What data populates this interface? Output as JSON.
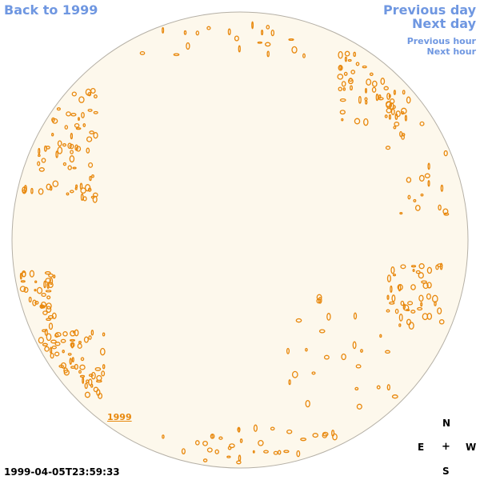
{
  "nav": {
    "back_label": "Back to 1999",
    "prev_day_label": "Previous day",
    "next_day_label": "Next day",
    "prev_hour_label": "Previous hour",
    "next_hour_label": "Next hour"
  },
  "disk": {
    "year_label": "1999",
    "fill_color": "#fdf8ec",
    "edge_color": "#b5b0a6",
    "feature_color": "#e8880d"
  },
  "compass": {
    "north": "N",
    "east": "E",
    "center": "+",
    "west": "W",
    "south": "S"
  },
  "timestamp": "1999-04-05T23:59:33"
}
